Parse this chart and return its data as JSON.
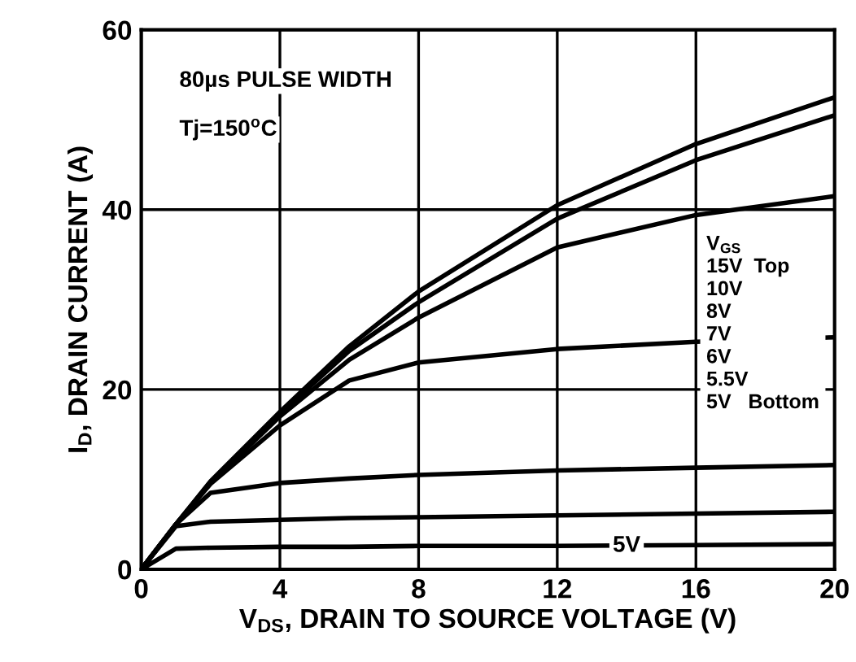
{
  "chart_data": {
    "type": "line",
    "xlabel": "V$_{DS}$, DRAIN TO SOURCE VOLTAGE (V)",
    "ylabel": "I$_{D}$, DRAIN CURRENT (A)",
    "x": [
      0,
      1,
      2,
      4,
      6,
      8,
      12,
      16,
      20
    ],
    "series": [
      {
        "color": "#000000",
        "values": [
          0,
          5,
          9.8,
          17.5,
          24.8,
          30.9,
          40.5,
          47.3,
          52.5
        ]
      },
      {
        "color": "#000000",
        "values": [
          0,
          5,
          9.7,
          17.3,
          24.3,
          29.7,
          39,
          45.5,
          50.5
        ]
      },
      {
        "color": "#000000",
        "values": [
          0,
          5,
          9.6,
          17,
          23.3,
          28,
          35.8,
          39.4,
          41.5
        ]
      },
      {
        "color": "#000000",
        "values": [
          0,
          5,
          9.5,
          16,
          21,
          23,
          24.5,
          25.3,
          25.8
        ]
      },
      {
        "color": "#000000",
        "values": [
          0,
          5,
          8.5,
          9.6,
          10.1,
          10.5,
          11,
          11.3,
          11.6
        ]
      },
      {
        "color": "#000000",
        "values": [
          0,
          4.8,
          5.3,
          5.5,
          5.7,
          5.8,
          6,
          6.2,
          6.4
        ]
      },
      {
        "color": "#000000",
        "values": [
          0,
          2.3,
          2.4,
          2.5,
          2.5,
          2.6,
          2.6,
          2.7,
          2.8
        ]
      }
    ],
    "annotations": [
      "80µs PULSE WIDTH",
      "Tj=150$^{o}$C",
      "V$_{GS}$\n15V  Top\n10V\n8V\n7V\n6V\n5.5V\n5V   Bottom",
      {
        "text": "5V",
        "x": 14,
        "y": 2.6
      }
    ],
    "xlim": [
      0,
      20
    ],
    "xticks": [
      0,
      4,
      8,
      12,
      16,
      20
    ],
    "ylim": [
      0,
      60
    ],
    "yticks": [
      0,
      20,
      40,
      60
    ],
    "grid": true,
    "marker": "none",
    "line_style": "solid"
  }
}
